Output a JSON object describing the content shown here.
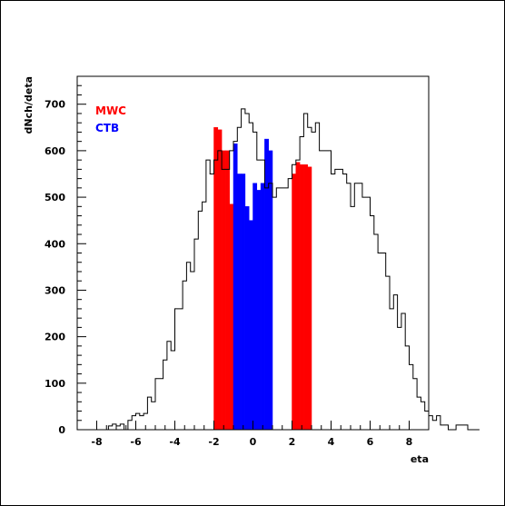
{
  "chart_data": {
    "type": "bar",
    "histogram": true,
    "xlabel": "eta",
    "ylabel": "dNch/deta",
    "xlim": [
      -9,
      9
    ],
    "ylim": [
      0,
      760
    ],
    "bin_width": 0.2,
    "x_ticks": [
      -8,
      -6,
      -4,
      -2,
      0,
      2,
      4,
      6,
      8
    ],
    "x_tick_labels": [
      "-8",
      "-6",
      "-4",
      "-2",
      "0",
      "2",
      "4",
      "6",
      "8"
    ],
    "y_ticks": [
      0,
      100,
      200,
      300,
      400,
      500,
      600,
      700
    ],
    "y_tick_labels": [
      "0",
      "100",
      "200",
      "300",
      "400",
      "500",
      "600",
      "700"
    ],
    "grid": false,
    "legend_position": "top-left",
    "series": [
      {
        "name": "",
        "style": "step-outline",
        "color": "#000000",
        "x_start": -8.0,
        "values": [
          0,
          0,
          0,
          8,
          12,
          8,
          12,
          0,
          20,
          30,
          35,
          30,
          35,
          70,
          60,
          110,
          110,
          150,
          190,
          170,
          260,
          260,
          320,
          360,
          340,
          410,
          470,
          490,
          580,
          550,
          580,
          600,
          560,
          560,
          600,
          620,
          650,
          690,
          680,
          660,
          640,
          580,
          580,
          520,
          530,
          500,
          520,
          520,
          520,
          540,
          570,
          580,
          630,
          680,
          650,
          640,
          660,
          600,
          600,
          600,
          550,
          560,
          560,
          550,
          530,
          480,
          530,
          530,
          500,
          500,
          460,
          420,
          380,
          380,
          330,
          260,
          290,
          220,
          250,
          180,
          140,
          110,
          70,
          60,
          40,
          30,
          20,
          30,
          10,
          10,
          0,
          0,
          10,
          10,
          10,
          0,
          0,
          0
        ]
      },
      {
        "name": "MWC",
        "style": "filled",
        "color": "#ff0000",
        "x_start": -2.0,
        "values": [
          650,
          645,
          600,
          600,
          485,
          480,
          0,
          0,
          0,
          0,
          0,
          0,
          0,
          0,
          0,
          0,
          0,
          0,
          0,
          0,
          550,
          575,
          570,
          570,
          565
        ]
      },
      {
        "name": "CTB",
        "style": "filled",
        "color": "#0000ff",
        "x_start": -1.0,
        "values": [
          615,
          550,
          550,
          480,
          450,
          530,
          515,
          530,
          625,
          600
        ]
      }
    ]
  }
}
